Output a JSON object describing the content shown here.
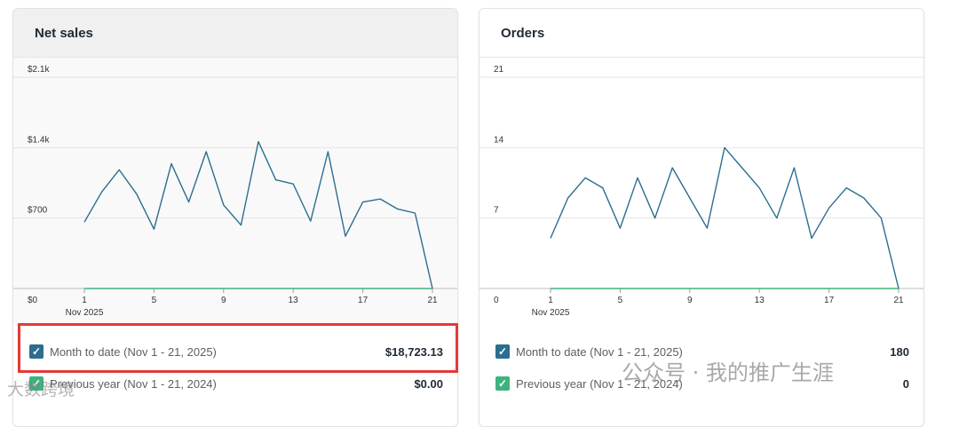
{
  "cards": {
    "net_sales": {
      "title": "Net sales",
      "legend": [
        {
          "label": "Month to date (Nov 1 - 21, 2025)",
          "value": "$18,723.13",
          "color": "#2c6e8f"
        },
        {
          "label": "Previous year (Nov 1 - 21, 2024)",
          "value": "$0.00",
          "color": "#3fb37f"
        }
      ]
    },
    "orders": {
      "title": "Orders",
      "legend": [
        {
          "label": "Month to date (Nov 1 - 21, 2025)",
          "value": "180",
          "color": "#2c6e8f"
        },
        {
          "label": "Previous year (Nov 1 - 21, 2024)",
          "value": "0",
          "color": "#3fb37f"
        }
      ]
    }
  },
  "watermark": {
    "left_text": "大数跨境",
    "right_text": "公众号 · 我的推广生涯"
  },
  "chart_data": [
    {
      "type": "line",
      "title": "Net sales",
      "x": [
        1,
        2,
        3,
        4,
        5,
        6,
        7,
        8,
        9,
        10,
        11,
        12,
        13,
        14,
        15,
        16,
        17,
        18,
        19,
        20,
        21
      ],
      "x_tick_labels": [
        "1",
        "5",
        "9",
        "13",
        "17",
        "21"
      ],
      "x_tick_values": [
        1,
        5,
        9,
        13,
        17,
        21
      ],
      "x_sublabel": "Nov 2025",
      "y_tick_labels": [
        "$0",
        "$700",
        "$1.4k",
        "$2.1k"
      ],
      "y_tick_values": [
        0,
        700,
        1400,
        2100
      ],
      "ylim": [
        0,
        2100
      ],
      "grid": true,
      "series": [
        {
          "name": "Month to date (Nov 1 - 21, 2025)",
          "color": "#2c6e8f",
          "values": [
            660,
            960,
            1180,
            940,
            590,
            1240,
            860,
            1360,
            830,
            630,
            1460,
            1080,
            1040,
            670,
            1360,
            520,
            860,
            890,
            790,
            750,
            0
          ]
        },
        {
          "name": "Previous year (Nov 1 - 21, 2024)",
          "color": "#3fb37f",
          "values": [
            0,
            0,
            0,
            0,
            0,
            0,
            0,
            0,
            0,
            0,
            0,
            0,
            0,
            0,
            0,
            0,
            0,
            0,
            0,
            0,
            0
          ]
        }
      ]
    },
    {
      "type": "line",
      "title": "Orders",
      "x": [
        1,
        2,
        3,
        4,
        5,
        6,
        7,
        8,
        9,
        10,
        11,
        12,
        13,
        14,
        15,
        16,
        17,
        18,
        19,
        20,
        21
      ],
      "x_tick_labels": [
        "1",
        "5",
        "9",
        "13",
        "17",
        "21"
      ],
      "x_tick_values": [
        1,
        5,
        9,
        13,
        17,
        21
      ],
      "x_sublabel": "Nov 2025",
      "y_tick_labels": [
        "0",
        "7",
        "14",
        "21"
      ],
      "y_tick_values": [
        0,
        7,
        14,
        21
      ],
      "ylim": [
        0,
        21
      ],
      "grid": true,
      "series": [
        {
          "name": "Month to date (Nov 1 - 21, 2025)",
          "color": "#2c6e8f",
          "values": [
            5,
            9,
            11,
            10,
            6,
            11,
            7,
            12,
            9,
            6,
            14,
            12,
            10,
            7,
            12,
            5,
            8,
            10,
            9,
            7,
            0
          ]
        },
        {
          "name": "Previous year (Nov 1 - 21, 2024)",
          "color": "#3fb37f",
          "values": [
            0,
            0,
            0,
            0,
            0,
            0,
            0,
            0,
            0,
            0,
            0,
            0,
            0,
            0,
            0,
            0,
            0,
            0,
            0,
            0,
            0
          ]
        }
      ]
    }
  ]
}
